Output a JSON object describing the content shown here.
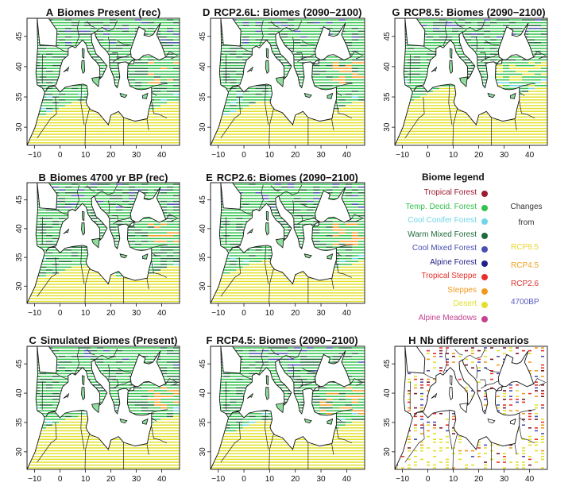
{
  "panels": [
    {
      "letter": "A",
      "title": "Biomes Present (rec)",
      "pattern": "rec_present"
    },
    {
      "letter": "D",
      "title": "RCP2.6L: Biomes (2090−2100)",
      "pattern": "rcp26l"
    },
    {
      "letter": "G",
      "title": "RCP8.5: Biomes (2090−2100)",
      "pattern": "rcp85"
    },
    {
      "letter": "B",
      "title": "Biomes 4700 yr BP (rec)",
      "pattern": "rec_4700"
    },
    {
      "letter": "E",
      "title": "RCP2.6: Biomes (2090−2100)",
      "pattern": "rcp26"
    },
    {
      "letter": "C",
      "title": "Simulated Biomes (Present)",
      "pattern": "sim_present"
    },
    {
      "letter": "F",
      "title": "RCP4.5: Biomes (2090−2100)",
      "pattern": "rcp45"
    },
    {
      "letter": "H",
      "title": "Nb different scenarios",
      "pattern": "nb"
    }
  ],
  "axes": {
    "x_ticks": [
      "−10",
      "0",
      "10",
      "20",
      "30",
      "40"
    ],
    "y_ticks_top": [
      "30",
      "35",
      "40",
      "45"
    ],
    "y_ticks_mid": [
      "30",
      "35",
      "40",
      "45"
    ],
    "y_ticks_bot": [
      "30",
      "35",
      "40",
      "45"
    ]
  },
  "legend": {
    "title": "Biome legend",
    "items": [
      {
        "label": "Tropical Forest",
        "color": "#9b1b30"
      },
      {
        "label": "Temp. Decid. Forest",
        "color": "#33c24d"
      },
      {
        "label": "Cool Conifer Forest",
        "color": "#6fd6e8"
      },
      {
        "label": "Warm Mixed Forest",
        "color": "#1f6b3a"
      },
      {
        "label": "Cool Mixed Forest",
        "color": "#4a4fb0"
      },
      {
        "label": "Alpine Forest",
        "color": "#22228a"
      },
      {
        "label": "Tropical Steppe",
        "color": "#e8302a"
      },
      {
        "label": "Steppes",
        "color": "#f29a1f"
      },
      {
        "label": "Desert",
        "color": "#e2e02a"
      },
      {
        "label": "Alpine Meadows",
        "color": "#c4438f"
      }
    ],
    "changes_label": "Changes from",
    "scenarios": [
      {
        "label": "RCP8.5",
        "color": "#e8d52a"
      },
      {
        "label": "RCP4.5",
        "color": "#f2a21f"
      },
      {
        "label": "RCP2.6",
        "color": "#d9302a"
      },
      {
        "label": "4700BP",
        "color": "#5a5ac0"
      }
    ]
  }
}
